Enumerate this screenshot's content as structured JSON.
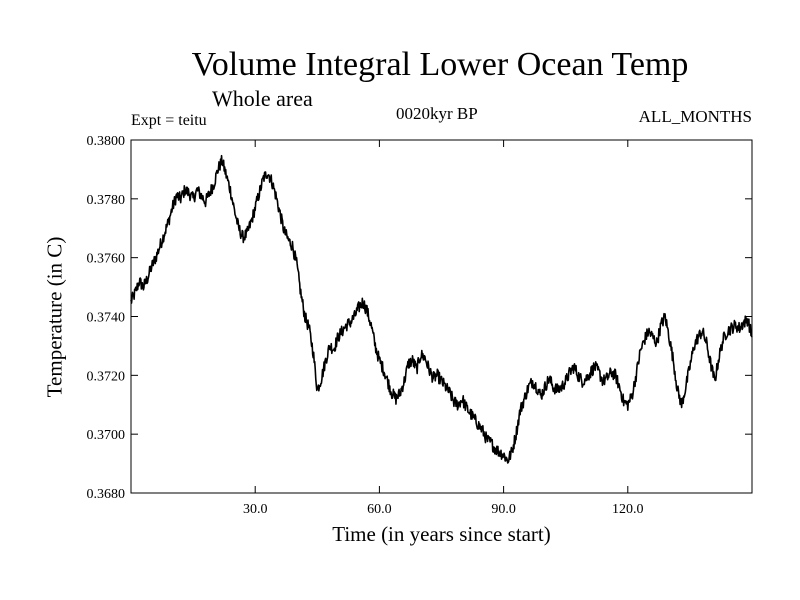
{
  "header": {
    "title": "Volume Integral Lower Ocean Temp",
    "subtitle": "Whole area",
    "experiment": "Expt = teitu",
    "period": "0020kyr BP",
    "months": "ALL_MONTHS"
  },
  "chart_data": {
    "type": "line",
    "title": "Volume Integral Lower Ocean Temp",
    "xlabel": "Time (in years since start)",
    "ylabel": "Temperature (in C)",
    "xlim": [
      0.0,
      150.0
    ],
    "ylim": [
      0.368,
      0.38
    ],
    "xticks": [
      30.0,
      60.0,
      90.0,
      120.0
    ],
    "xtick_labels": [
      "30.0",
      "60.0",
      "90.0",
      "120.0"
    ],
    "yticks": [
      0.368,
      0.37,
      0.372,
      0.374,
      0.376,
      0.378,
      0.38
    ],
    "ytick_labels": [
      "0.3680",
      "0.3700",
      "0.3720",
      "0.3740",
      "0.3760",
      "0.3780",
      "0.3800"
    ],
    "grid": false,
    "series": [
      {
        "name": "Temperature",
        "color": "#000000",
        "x": [
          0,
          1,
          2,
          3,
          4,
          5,
          6,
          7,
          8,
          9,
          10,
          11,
          12,
          13,
          14,
          15,
          16,
          17,
          18,
          19,
          20,
          21,
          22,
          23,
          24,
          25,
          26,
          27,
          28,
          29,
          30,
          31,
          32,
          33,
          34,
          35,
          36,
          37,
          38,
          39,
          40,
          41,
          42,
          43,
          44,
          45,
          46,
          47,
          48,
          49,
          50,
          51,
          52,
          53,
          54,
          55,
          56,
          57,
          58,
          59,
          60,
          61,
          62,
          63,
          64,
          65,
          66,
          67,
          68,
          69,
          70,
          71,
          72,
          73,
          74,
          75,
          76,
          77,
          78,
          79,
          80,
          81,
          82,
          83,
          84,
          85,
          86,
          87,
          88,
          89,
          90,
          91,
          92,
          93,
          94,
          95,
          96,
          97,
          98,
          99,
          100,
          101,
          102,
          103,
          104,
          105,
          106,
          107,
          108,
          109,
          110,
          111,
          112,
          113,
          114,
          115,
          116,
          117,
          118,
          119,
          120,
          121,
          122,
          123,
          124,
          125,
          126,
          127,
          128,
          129,
          130,
          131,
          132,
          133,
          134,
          135,
          136,
          137,
          138,
          139,
          140,
          141,
          142,
          143,
          144,
          145,
          146,
          147,
          148,
          149,
          150
        ],
        "values": [
          0.3745,
          0.3748,
          0.3752,
          0.375,
          0.3753,
          0.3757,
          0.376,
          0.3764,
          0.3768,
          0.3772,
          0.3777,
          0.3781,
          0.378,
          0.3783,
          0.3782,
          0.378,
          0.3783,
          0.3781,
          0.3779,
          0.3782,
          0.3785,
          0.379,
          0.3793,
          0.3788,
          0.3783,
          0.3776,
          0.377,
          0.3767,
          0.3768,
          0.3772,
          0.3777,
          0.3782,
          0.3787,
          0.3789,
          0.3786,
          0.3781,
          0.3775,
          0.3769,
          0.3766,
          0.3764,
          0.3758,
          0.3748,
          0.374,
          0.3736,
          0.3728,
          0.3715,
          0.3719,
          0.3725,
          0.373,
          0.3729,
          0.3733,
          0.3735,
          0.3737,
          0.3738,
          0.374,
          0.3743,
          0.3745,
          0.3742,
          0.3737,
          0.373,
          0.3725,
          0.3722,
          0.3718,
          0.3714,
          0.3712,
          0.3714,
          0.3718,
          0.3724,
          0.3725,
          0.3722,
          0.3727,
          0.3726,
          0.3722,
          0.3719,
          0.372,
          0.3718,
          0.3716,
          0.3714,
          0.3711,
          0.371,
          0.3712,
          0.3709,
          0.3707,
          0.3705,
          0.3703,
          0.3701,
          0.3698,
          0.3697,
          0.3695,
          0.3694,
          0.3693,
          0.3691,
          0.3694,
          0.37,
          0.3708,
          0.3712,
          0.3716,
          0.3718,
          0.3716,
          0.3713,
          0.3716,
          0.3719,
          0.3716,
          0.3715,
          0.3716,
          0.3718,
          0.3721,
          0.3723,
          0.372,
          0.3718,
          0.3719,
          0.3721,
          0.3723,
          0.3721,
          0.3718,
          0.3719,
          0.3721,
          0.372,
          0.3716,
          0.3711,
          0.371,
          0.3713,
          0.372,
          0.3728,
          0.3732,
          0.3735,
          0.3733,
          0.3731,
          0.3737,
          0.374,
          0.3733,
          0.3725,
          0.3715,
          0.371,
          0.3716,
          0.3723,
          0.373,
          0.3733,
          0.3735,
          0.3731,
          0.3724,
          0.3718,
          0.3726,
          0.3732,
          0.3735,
          0.3736,
          0.3737,
          0.3736,
          0.3738,
          0.3739,
          0.3733
        ]
      }
    ]
  }
}
